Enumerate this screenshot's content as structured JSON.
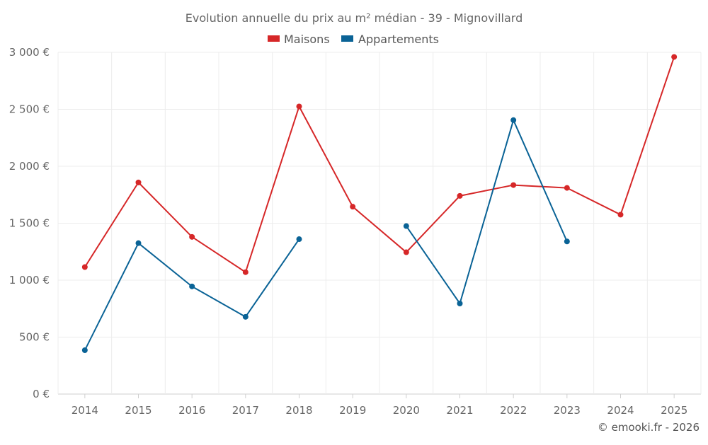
{
  "chart_data": {
    "type": "line",
    "title": "Evolution annuelle du prix au m² médian - 39 - Mignovillard",
    "xlabel": "",
    "ylabel": "",
    "categories": [
      "2014",
      "2015",
      "2016",
      "2017",
      "2018",
      "2019",
      "2020",
      "2021",
      "2022",
      "2023",
      "2024",
      "2025"
    ],
    "ylim": [
      0,
      3000
    ],
    "yticks": [
      0,
      500,
      1000,
      1500,
      2000,
      2500,
      3000
    ],
    "ytick_labels": [
      "0 €",
      "500 €",
      "1 000 €",
      "1 500 €",
      "2 000 €",
      "2 500 €",
      "3 000 €"
    ],
    "grid": true,
    "legend_position": "top-center",
    "series": [
      {
        "name": "Maisons",
        "color": "#d62728",
        "values": [
          1115,
          1858,
          1380,
          1070,
          2525,
          1645,
          1245,
          1740,
          1835,
          1810,
          1575,
          2960
        ]
      },
      {
        "name": "Appartements",
        "color": "#0a6396",
        "values": [
          385,
          1325,
          945,
          678,
          1360,
          null,
          1475,
          795,
          2405,
          1340,
          null,
          null
        ]
      }
    ]
  },
  "credit": "© emooki.fr - 2026"
}
